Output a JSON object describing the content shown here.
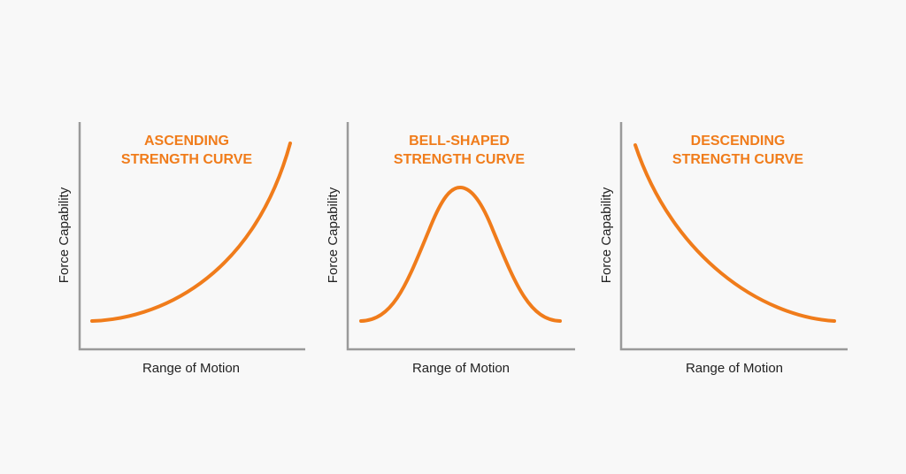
{
  "colors": {
    "background": "#f8f8f8",
    "curve": "#f07c1b",
    "axis": "#9a9a9a",
    "label_text": "#222222"
  },
  "panels": [
    {
      "title_lines": [
        "ASCENDING",
        "STRENGTH CURVE"
      ],
      "xlabel": "Range of Motion",
      "ylabel": "Force Capability",
      "shape": "ascending"
    },
    {
      "title_lines": [
        "BELL-SHAPED",
        "STRENGTH CURVE"
      ],
      "xlabel": "Range of Motion",
      "ylabel": "Force Capability",
      "shape": "bell"
    },
    {
      "title_lines": [
        "DESCENDING",
        "STRENGTH CURVE"
      ],
      "xlabel": "Range of Motion",
      "ylabel": "Force Capability",
      "shape": "descending"
    }
  ]
}
